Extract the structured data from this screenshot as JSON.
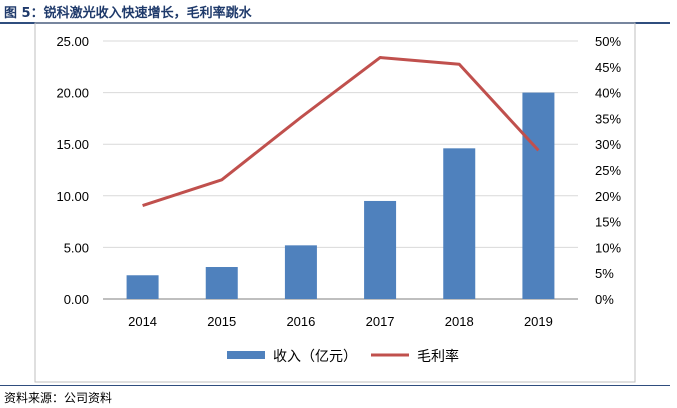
{
  "figure": {
    "title": "图 5：锐科激光收入快速增长，毛利率跳水",
    "source": "资料来源：公司资料"
  },
  "colors": {
    "bar": "#4F81BD",
    "line": "#C0504D",
    "title": "#1F3A6B",
    "grid": "#D9D9D9",
    "axis": "#7F7F7F"
  },
  "chart_data": {
    "type": "bar",
    "categories": [
      "2014",
      "2015",
      "2016",
      "2017",
      "2018",
      "2019"
    ],
    "series": [
      {
        "name": "收入（亿元）",
        "type": "bar",
        "axis": "left",
        "values": [
          2.3,
          3.1,
          5.2,
          9.5,
          14.6,
          20.0
        ]
      },
      {
        "name": "毛利率",
        "type": "line",
        "axis": "right",
        "values": [
          18.1,
          23.1,
          35.2,
          46.8,
          45.5,
          28.8
        ]
      }
    ],
    "y_left": {
      "min": 0,
      "max": 25,
      "step": 5,
      "tick_labels": [
        "0.00",
        "5.00",
        "10.00",
        "15.00",
        "20.00",
        "25.00"
      ]
    },
    "y_right": {
      "min": 0,
      "max": 50,
      "step": 5,
      "tick_labels": [
        "0%",
        "5%",
        "10%",
        "15%",
        "20%",
        "25%",
        "30%",
        "35%",
        "40%",
        "45%",
        "50%"
      ]
    },
    "grid": true,
    "legend_position": "bottom"
  }
}
